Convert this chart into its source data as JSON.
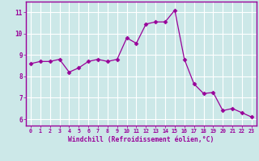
{
  "x": [
    0,
    1,
    2,
    3,
    4,
    5,
    6,
    7,
    8,
    9,
    10,
    11,
    12,
    13,
    14,
    15,
    16,
    17,
    18,
    19,
    20,
    21,
    22,
    23
  ],
  "y": [
    8.6,
    8.7,
    8.7,
    8.8,
    8.2,
    8.4,
    8.7,
    8.8,
    8.7,
    8.8,
    9.8,
    9.55,
    10.45,
    10.55,
    10.55,
    11.1,
    8.8,
    7.65,
    7.2,
    7.25,
    6.4,
    6.5,
    6.3,
    6.1
  ],
  "line_color": "#990099",
  "marker": "D",
  "marker_size": 2.5,
  "bg_color": "#cce8e8",
  "grid_color": "#ffffff",
  "xlabel": "Windchill (Refroidissement éolien,°C)",
  "xlabel_color": "#990099",
  "tick_color": "#990099",
  "ylabel_ticks": [
    6,
    7,
    8,
    9,
    10,
    11
  ],
  "xlim": [
    -0.5,
    23.5
  ],
  "ylim": [
    5.7,
    11.5
  ],
  "xtick_labels": [
    "0",
    "1",
    "2",
    "3",
    "4",
    "5",
    "6",
    "7",
    "8",
    "9",
    "10",
    "11",
    "12",
    "13",
    "14",
    "15",
    "16",
    "17",
    "18",
    "19",
    "20",
    "21",
    "22",
    "23"
  ]
}
